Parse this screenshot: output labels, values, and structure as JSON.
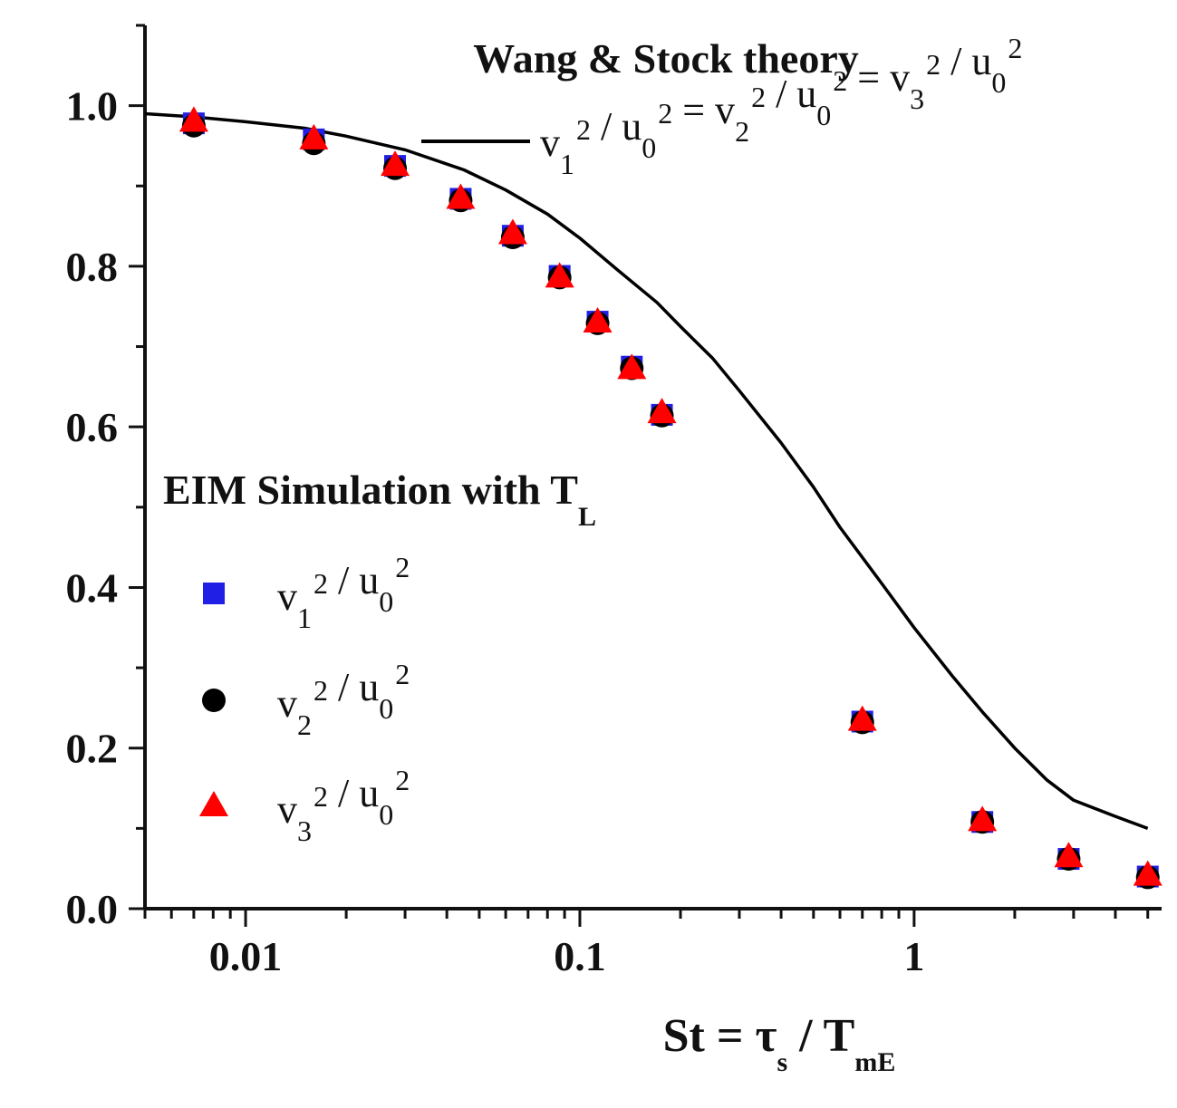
{
  "chart_data": {
    "type": "scatter",
    "title": "Wang & Stock theory",
    "xlabel": {
      "prefix": "St = τ",
      "sub1": "s",
      "middle": " / T",
      "sub2": "mE"
    },
    "ylabel": "",
    "xscale": "log",
    "xlim": [
      0.005,
      5.5
    ],
    "ylim": [
      0,
      1.1
    ],
    "grid": false,
    "xticks": [
      {
        "value": 0.01,
        "label": "0.01"
      },
      {
        "value": 0.1,
        "label": "0.1"
      },
      {
        "value": 1,
        "label": "1"
      }
    ],
    "yticks": [
      {
        "value": 0.0,
        "label": "0.0"
      },
      {
        "value": 0.2,
        "label": "0.2"
      },
      {
        "value": 0.4,
        "label": "0.4"
      },
      {
        "value": 0.6,
        "label": "0.6"
      },
      {
        "value": 0.8,
        "label": "0.8"
      },
      {
        "value": 1.0,
        "label": "1.0"
      }
    ],
    "theory_curve": {
      "name": "v1^2 / u0^2 = v2^2 / u0^2 = v3^2 / u0^2",
      "legend_parts": [
        "v",
        "1",
        "2",
        " / u",
        "0",
        "2",
        " = v",
        "2",
        "2",
        " / u",
        "0",
        "2",
        " = v",
        "3",
        "2",
        " / u",
        "0",
        "2"
      ],
      "color": "#000000",
      "x": [
        0.005,
        0.007,
        0.01,
        0.015,
        0.02,
        0.03,
        0.045,
        0.06,
        0.08,
        0.1,
        0.13,
        0.17,
        0.2,
        0.25,
        0.3,
        0.4,
        0.5,
        0.6,
        0.8,
        1.0,
        1.3,
        1.6,
        2.0,
        2.5,
        3.0,
        4.0,
        5.0
      ],
      "y": [
        0.99,
        0.986,
        0.98,
        0.972,
        0.962,
        0.945,
        0.92,
        0.895,
        0.865,
        0.835,
        0.795,
        0.755,
        0.725,
        0.685,
        0.645,
        0.58,
        0.525,
        0.475,
        0.405,
        0.35,
        0.29,
        0.245,
        0.2,
        0.16,
        0.135,
        0.115,
        0.1
      ]
    },
    "legend_title": {
      "text": "EIM Simulation with T",
      "sub": "L"
    },
    "series": [
      {
        "name": "v1^2 / u0^2",
        "marker": "square",
        "color": "#1f1fe6",
        "legend_parts": [
          "v",
          "1",
          "2",
          " / u",
          "0",
          "2"
        ],
        "x": [
          0.007,
          0.016,
          0.028,
          0.044,
          0.063,
          0.087,
          0.113,
          0.143,
          0.176,
          0.7,
          1.6,
          2.9,
          5.0
        ],
        "y": [
          0.978,
          0.958,
          0.925,
          0.884,
          0.838,
          0.788,
          0.731,
          0.675,
          0.615,
          0.233,
          0.108,
          0.062,
          0.04
        ]
      },
      {
        "name": "v2^2 / u0^2",
        "marker": "circle",
        "color": "#000000",
        "legend_parts": [
          "v",
          "2",
          "2",
          " / u",
          "0",
          "2"
        ],
        "x": [
          0.007,
          0.016,
          0.028,
          0.044,
          0.063,
          0.087,
          0.113,
          0.143,
          0.176,
          0.7,
          1.6,
          2.9,
          5.0
        ],
        "y": [
          0.975,
          0.953,
          0.922,
          0.882,
          0.836,
          0.786,
          0.729,
          0.673,
          0.614,
          0.232,
          0.108,
          0.062,
          0.039
        ]
      },
      {
        "name": "v3^2 / u0^2",
        "marker": "triangle",
        "color": "#ff0000",
        "legend_parts": [
          "v",
          "3",
          "2",
          " / u",
          "0",
          "2"
        ],
        "x": [
          0.007,
          0.016,
          0.028,
          0.044,
          0.063,
          0.087,
          0.113,
          0.143,
          0.176,
          0.7,
          1.6,
          2.9,
          5.0
        ],
        "y": [
          0.98,
          0.958,
          0.925,
          0.884,
          0.84,
          0.786,
          0.73,
          0.672,
          0.617,
          0.234,
          0.109,
          0.064,
          0.041
        ]
      }
    ]
  }
}
